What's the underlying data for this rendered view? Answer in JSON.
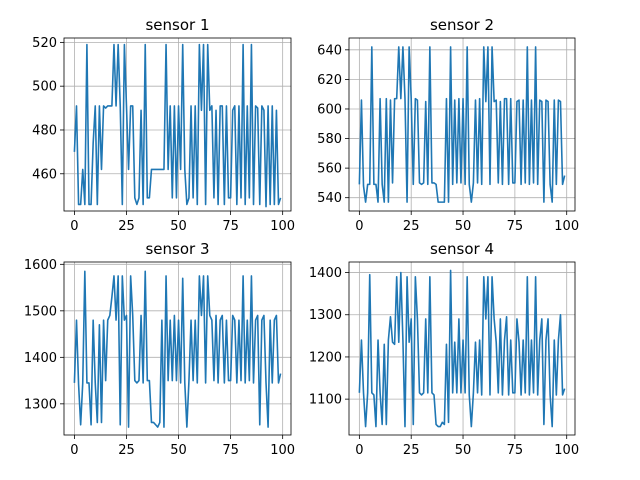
{
  "chart_data": [
    {
      "type": "line",
      "title": "sensor 1",
      "xlim": [
        -5,
        104
      ],
      "ylim": [
        443,
        522
      ],
      "xticks": [
        0,
        25,
        50,
        75,
        100
      ],
      "yticks": [
        460,
        480,
        500,
        520
      ],
      "grid": true,
      "color": "#1f77b4",
      "series": [
        {
          "x": [
            0,
            1,
            2,
            3,
            4,
            5,
            6,
            7,
            8,
            9,
            10,
            11,
            12,
            13,
            14,
            15,
            16,
            17,
            18,
            19,
            20,
            21,
            22,
            23,
            24,
            25,
            26,
            27,
            28,
            29,
            30,
            31,
            32,
            33,
            34,
            35,
            36,
            37,
            38,
            39,
            40,
            41,
            42,
            43,
            44,
            45,
            46,
            47,
            48,
            49,
            50,
            51,
            52,
            53,
            54,
            55,
            56,
            57,
            58,
            59,
            60,
            61,
            62,
            63,
            64,
            65,
            66,
            67,
            68,
            69,
            70,
            71,
            72,
            73,
            74,
            75,
            76,
            77,
            78,
            79,
            80,
            81,
            82,
            83,
            84,
            85,
            86,
            87,
            88,
            89,
            90,
            91,
            92,
            93,
            94,
            95,
            96,
            97,
            98,
            99
          ],
          "y": [
            470,
            491,
            446,
            446,
            462,
            446,
            519,
            446,
            446,
            474,
            491,
            446,
            491,
            462,
            491,
            490,
            491,
            491,
            491,
            519,
            491,
            519,
            491,
            446,
            519,
            491,
            462,
            491,
            491,
            449,
            446,
            449,
            489,
            446,
            519,
            449,
            449,
            462,
            462,
            462,
            462,
            462,
            462,
            462,
            519,
            462,
            491,
            449,
            491,
            449,
            491,
            462,
            519,
            462,
            446,
            449,
            491,
            449,
            491,
            446,
            519,
            489,
            519,
            446,
            519,
            489,
            491,
            449,
            489,
            446,
            491,
            491,
            446,
            491,
            449,
            449,
            489,
            491,
            446,
            491,
            449,
            519,
            446,
            491,
            449,
            519,
            446,
            491,
            490,
            446,
            491,
            489,
            445,
            491,
            446,
            491,
            446,
            489,
            446,
            449
          ]
        }
      ]
    },
    {
      "type": "line",
      "title": "sensor 2",
      "xlim": [
        -5,
        104
      ],
      "ylim": [
        531,
        648
      ],
      "xticks": [
        0,
        25,
        50,
        75,
        100
      ],
      "yticks": [
        540,
        560,
        580,
        600,
        620,
        640
      ],
      "grid": true,
      "color": "#1f77b4",
      "series": [
        {
          "x": [
            0,
            1,
            2,
            3,
            4,
            5,
            6,
            7,
            8,
            9,
            10,
            11,
            12,
            13,
            14,
            15,
            16,
            17,
            18,
            19,
            20,
            21,
            22,
            23,
            24,
            25,
            26,
            27,
            28,
            29,
            30,
            31,
            32,
            33,
            34,
            35,
            36,
            37,
            38,
            39,
            40,
            41,
            42,
            43,
            44,
            45,
            46,
            47,
            48,
            49,
            50,
            51,
            52,
            53,
            54,
            55,
            56,
            57,
            58,
            59,
            60,
            61,
            62,
            63,
            64,
            65,
            66,
            67,
            68,
            69,
            70,
            71,
            72,
            73,
            74,
            75,
            76,
            77,
            78,
            79,
            80,
            81,
            82,
            83,
            84,
            85,
            86,
            87,
            88,
            89,
            90,
            91,
            92,
            93,
            94,
            95,
            96,
            97,
            98,
            99
          ],
          "y": [
            549,
            606,
            548,
            537,
            549,
            549,
            642,
            549,
            549,
            537,
            607,
            549,
            537,
            607,
            537,
            606,
            550,
            607,
            607,
            642,
            607,
            642,
            607,
            537,
            642,
            607,
            549,
            607,
            606,
            550,
            549,
            550,
            605,
            549,
            642,
            550,
            550,
            549,
            537,
            537,
            537,
            537,
            607,
            537,
            642,
            549,
            606,
            550,
            607,
            550,
            607,
            549,
            642,
            549,
            537,
            550,
            606,
            550,
            607,
            549,
            642,
            605,
            642,
            549,
            642,
            605,
            606,
            550,
            605,
            549,
            607,
            607,
            549,
            607,
            550,
            550,
            605,
            606,
            549,
            606,
            550,
            642,
            549,
            606,
            550,
            642,
            549,
            606,
            605,
            537,
            606,
            605,
            549,
            537,
            606,
            549,
            606,
            605,
            549,
            555
          ]
        }
      ]
    },
    {
      "type": "line",
      "title": "sensor 3",
      "xlim": [
        -5,
        104
      ],
      "ylim": [
        1233,
        1605
      ],
      "xticks": [
        0,
        25,
        50,
        75,
        100
      ],
      "yticks": [
        1300,
        1400,
        1500,
        1600
      ],
      "grid": true,
      "color": "#1f77b4",
      "series": [
        {
          "x": [
            0,
            1,
            2,
            3,
            4,
            5,
            6,
            7,
            8,
            9,
            10,
            11,
            12,
            13,
            14,
            15,
            16,
            17,
            18,
            19,
            20,
            21,
            22,
            23,
            24,
            25,
            26,
            27,
            28,
            29,
            30,
            31,
            32,
            33,
            34,
            35,
            36,
            37,
            38,
            39,
            40,
            41,
            42,
            43,
            44,
            45,
            46,
            47,
            48,
            49,
            50,
            51,
            52,
            53,
            54,
            55,
            56,
            57,
            58,
            59,
            60,
            61,
            62,
            63,
            64,
            65,
            66,
            67,
            68,
            69,
            70,
            71,
            72,
            73,
            74,
            75,
            76,
            77,
            78,
            79,
            80,
            81,
            82,
            83,
            84,
            85,
            86,
            87,
            88,
            89,
            90,
            91,
            92,
            93,
            94,
            95,
            96,
            97,
            98,
            99
          ],
          "y": [
            1345,
            1480,
            1342,
            1255,
            1345,
            1585,
            1345,
            1345,
            1255,
            1480,
            1345,
            1260,
            1470,
            1260,
            1480,
            1350,
            1480,
            1490,
            1530,
            1575,
            1480,
            1575,
            1255,
            1575,
            1480,
            1490,
            1250,
            1575,
            1490,
            1350,
            1345,
            1350,
            1490,
            1345,
            1585,
            1350,
            1350,
            1260,
            1260,
            1255,
            1250,
            1260,
            1480,
            1250,
            1575,
            1350,
            1480,
            1350,
            1490,
            1350,
            1480,
            1345,
            1570,
            1345,
            1250,
            1350,
            1480,
            1350,
            1480,
            1345,
            1575,
            1490,
            1575,
            1345,
            1575,
            1490,
            1480,
            1350,
            1490,
            1345,
            1480,
            1490,
            1345,
            1480,
            1350,
            1350,
            1490,
            1480,
            1345,
            1480,
            1350,
            1575,
            1345,
            1480,
            1350,
            1575,
            1345,
            1480,
            1490,
            1255,
            1480,
            1490,
            1345,
            1250,
            1480,
            1345,
            1480,
            1490,
            1345,
            1365
          ]
        }
      ]
    },
    {
      "type": "line",
      "title": "sensor 4",
      "xlim": [
        -5,
        104
      ],
      "ylim": [
        1015,
        1425
      ],
      "xticks": [
        0,
        25,
        50,
        75,
        100
      ],
      "yticks": [
        1100,
        1200,
        1300,
        1400
      ],
      "grid": true,
      "color": "#1f77b4",
      "series": [
        {
          "x": [
            0,
            1,
            2,
            3,
            4,
            5,
            6,
            7,
            8,
            9,
            10,
            11,
            12,
            13,
            14,
            15,
            16,
            17,
            18,
            19,
            20,
            21,
            22,
            23,
            24,
            25,
            26,
            27,
            28,
            29,
            30,
            31,
            32,
            33,
            34,
            35,
            36,
            37,
            38,
            39,
            40,
            41,
            42,
            43,
            44,
            45,
            46,
            47,
            48,
            49,
            50,
            51,
            52,
            53,
            54,
            55,
            56,
            57,
            58,
            59,
            60,
            61,
            62,
            63,
            64,
            65,
            66,
            67,
            68,
            69,
            70,
            71,
            72,
            73,
            74,
            75,
            76,
            77,
            78,
            79,
            80,
            81,
            82,
            83,
            84,
            85,
            86,
            87,
            88,
            89,
            90,
            91,
            92,
            93,
            94,
            95,
            96,
            97,
            98,
            99
          ],
          "y": [
            1115,
            1240,
            1115,
            1035,
            1115,
            1395,
            1115,
            1110,
            1035,
            1240,
            1115,
            1040,
            1230,
            1040,
            1240,
            1295,
            1235,
            1230,
            1390,
            1235,
            1400,
            1240,
            1035,
            1390,
            1235,
            1290,
            1040,
            1390,
            1290,
            1115,
            1110,
            1115,
            1290,
            1115,
            1390,
            1115,
            1110,
            1040,
            1035,
            1035,
            1045,
            1040,
            1230,
            1045,
            1405,
            1115,
            1235,
            1115,
            1290,
            1115,
            1240,
            1115,
            1390,
            1110,
            1035,
            1115,
            1235,
            1115,
            1240,
            1110,
            1390,
            1290,
            1390,
            1110,
            1390,
            1290,
            1235,
            1115,
            1290,
            1110,
            1240,
            1295,
            1110,
            1240,
            1115,
            1115,
            1290,
            1235,
            1110,
            1240,
            1115,
            1390,
            1110,
            1240,
            1115,
            1390,
            1110,
            1240,
            1290,
            1040,
            1240,
            1290,
            1110,
            1035,
            1240,
            1110,
            1240,
            1300,
            1110,
            1125
          ]
        }
      ]
    }
  ]
}
